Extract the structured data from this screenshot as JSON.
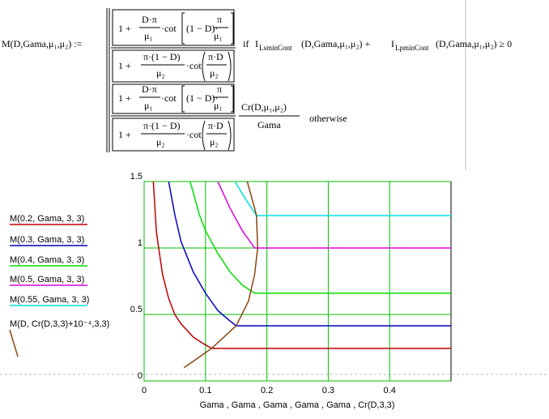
{
  "formula": {
    "lhs": "M(D,Gama,μ₁,μ₂) :=",
    "one_plus": "1 +",
    "d_pi": "D·π",
    "mu1": "μ₁",
    "cot": "·cot",
    "one_minus_d": "(1 − D)·",
    "pi": "π",
    "pi_one_minus_d": "π·(1 − D)",
    "mu2": "μ₂",
    "pi_d": "π·D",
    "if": "if",
    "cond": "I",
    "ls": "LsminCont",
    "args_plus": "(D,Gama,μ₁,μ₂) +",
    "lp": "LpminCont",
    "args_ge": "(D,Gama,μ₁,μ₂) ≥ 0",
    "cr": "Cr(D,μ₁,μ₂)",
    "gama": "Gama",
    "otherwise": "otherwise"
  },
  "chart_data": {
    "type": "line",
    "x_label": "Gama , Gama , Gama , Gama , Gama , Cr(D,3,3)",
    "xlim": [
      0,
      0.5
    ],
    "ylim": [
      0,
      1.5
    ],
    "xticks": [
      0,
      0.1,
      0.2,
      0.3,
      0.4
    ],
    "yticks": [
      0,
      0.5,
      1,
      1.5
    ],
    "grid": true,
    "grid_color": "#00c000",
    "series": [
      {
        "name": "M(0.2, Gama, 3, 3)",
        "color": "#c00000",
        "x": [
          0.015,
          0.02,
          0.03,
          0.04,
          0.05,
          0.06,
          0.08,
          0.1,
          0.11,
          0.2,
          0.3,
          0.4,
          0.5
        ],
        "values": [
          1.5,
          1.12,
          0.8,
          0.62,
          0.5,
          0.43,
          0.33,
          0.27,
          0.245,
          0.245,
          0.245,
          0.245,
          0.245
        ]
      },
      {
        "name": "M(0.3, Gama, 3, 3)",
        "color": "#0000c0",
        "x": [
          0.04,
          0.05,
          0.06,
          0.08,
          0.1,
          0.12,
          0.14,
          0.15,
          0.2,
          0.3,
          0.4,
          0.5
        ],
        "values": [
          1.5,
          1.25,
          1.05,
          0.82,
          0.66,
          0.53,
          0.45,
          0.415,
          0.415,
          0.415,
          0.415,
          0.415
        ]
      },
      {
        "name": "M(0.4, Gama, 3, 3)",
        "color": "#00e000",
        "x": [
          0.075,
          0.09,
          0.1,
          0.12,
          0.14,
          0.16,
          0.18,
          0.2,
          0.3,
          0.4,
          0.5
        ],
        "values": [
          1.5,
          1.25,
          1.13,
          0.96,
          0.82,
          0.72,
          0.66,
          0.66,
          0.66,
          0.66,
          0.66
        ]
      },
      {
        "name": "M(0.5, Gama, 3, 3)",
        "color": "#e000e0",
        "x": [
          0.12,
          0.14,
          0.16,
          0.18,
          0.2,
          0.3,
          0.4,
          0.5
        ],
        "values": [
          1.5,
          1.3,
          1.13,
          1.0,
          1.0,
          1.0,
          1.0,
          1.0
        ]
      },
      {
        "name": "M(0.55, Gama, 3, 3)",
        "color": "#00e0e0",
        "x": [
          0.148,
          0.165,
          0.183,
          0.2,
          0.3,
          0.4,
          0.5
        ],
        "values": [
          1.5,
          1.37,
          1.244,
          1.244,
          1.244,
          1.244,
          1.244
        ]
      },
      {
        "name": "M(D, Cr(D,3,3)+10⁻⁴,3,3)",
        "color": "#8b4513",
        "x": [
          0.065,
          0.09,
          0.11,
          0.15,
          0.17,
          0.18,
          0.185,
          0.183,
          0.18,
          0.168
        ],
        "values": [
          0.1,
          0.18,
          0.245,
          0.415,
          0.6,
          0.8,
          1.0,
          1.244,
          1.3,
          1.5
        ]
      }
    ]
  }
}
